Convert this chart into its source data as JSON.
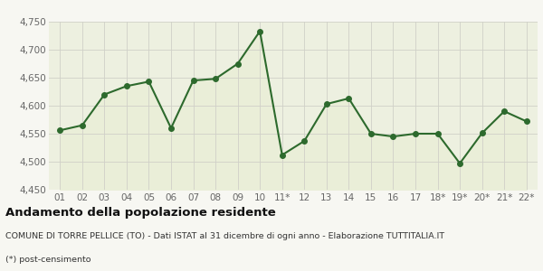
{
  "x_labels": [
    "01",
    "02",
    "03",
    "04",
    "05",
    "06",
    "07",
    "08",
    "09",
    "10",
    "11*",
    "12",
    "13",
    "14",
    "15",
    "16",
    "17",
    "18*",
    "19*",
    "20*",
    "21*",
    "22*"
  ],
  "y_values": [
    4556,
    4565,
    4620,
    4635,
    4643,
    4560,
    4645,
    4648,
    4675,
    4733,
    4512,
    4537,
    4603,
    4613,
    4550,
    4545,
    4550,
    4550,
    4497,
    4551,
    4590,
    4572
  ],
  "ylim": [
    4450,
    4750
  ],
  "yticks": [
    4450,
    4500,
    4550,
    4600,
    4650,
    4700,
    4750
  ],
  "line_color": "#2d6a2d",
  "fill_color": "#eaeed8",
  "marker_size": 4,
  "line_width": 1.5,
  "bg_color": "#f7f7f2",
  "plot_bg_color": "#edf0e0",
  "grid_color": "#d0d0c8",
  "title": "Andamento della popolazione residente",
  "subtitle": "COMUNE DI TORRE PELLICE (TO) - Dati ISTAT al 31 dicembre di ogni anno - Elaborazione TUTTITALIA.IT",
  "footnote": "(*) post-censimento",
  "title_fontsize": 9.5,
  "subtitle_fontsize": 6.8,
  "footnote_fontsize": 6.8,
  "tick_fontsize": 7.5
}
